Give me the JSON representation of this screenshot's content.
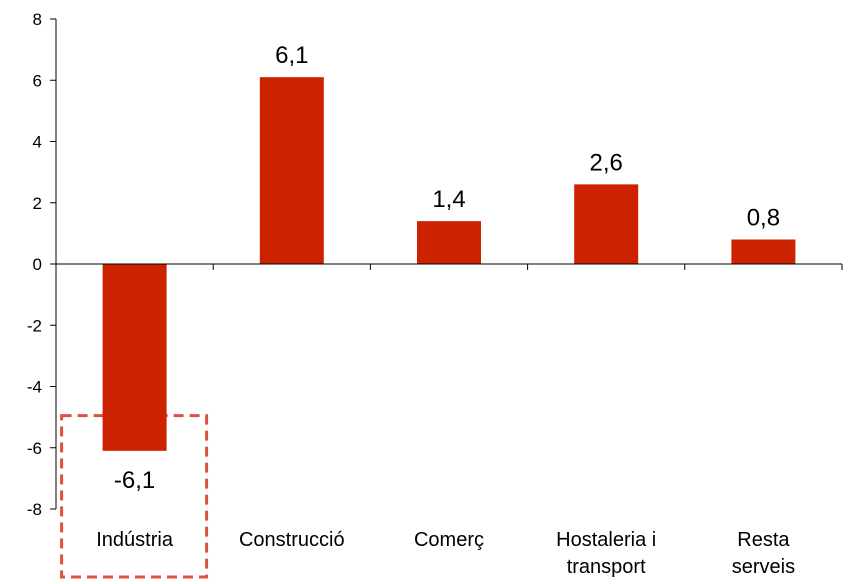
{
  "chart_data": {
    "type": "bar",
    "categories": [
      [
        "Indústria"
      ],
      [
        "Construcció"
      ],
      [
        "Comerç"
      ],
      [
        "Hostaleria i",
        "transport"
      ],
      [
        "Resta",
        "serveis"
      ]
    ],
    "values": [
      -6.1,
      6.1,
      1.4,
      2.6,
      0.8
    ],
    "data_labels": [
      "-6,1",
      "6,1",
      "1,4",
      "2,6",
      "0,8"
    ],
    "ylim": [
      -8,
      8
    ],
    "yticks": [
      8,
      6,
      4,
      2,
      0,
      -2,
      -4,
      -6,
      -8
    ],
    "title": "",
    "xlabel": "",
    "ylabel": "",
    "grid": false,
    "legend": "none",
    "bar_color": "#CC2200",
    "highlight": {
      "category_index": 0,
      "style": "dashed-box",
      "color": "#E05040"
    }
  }
}
